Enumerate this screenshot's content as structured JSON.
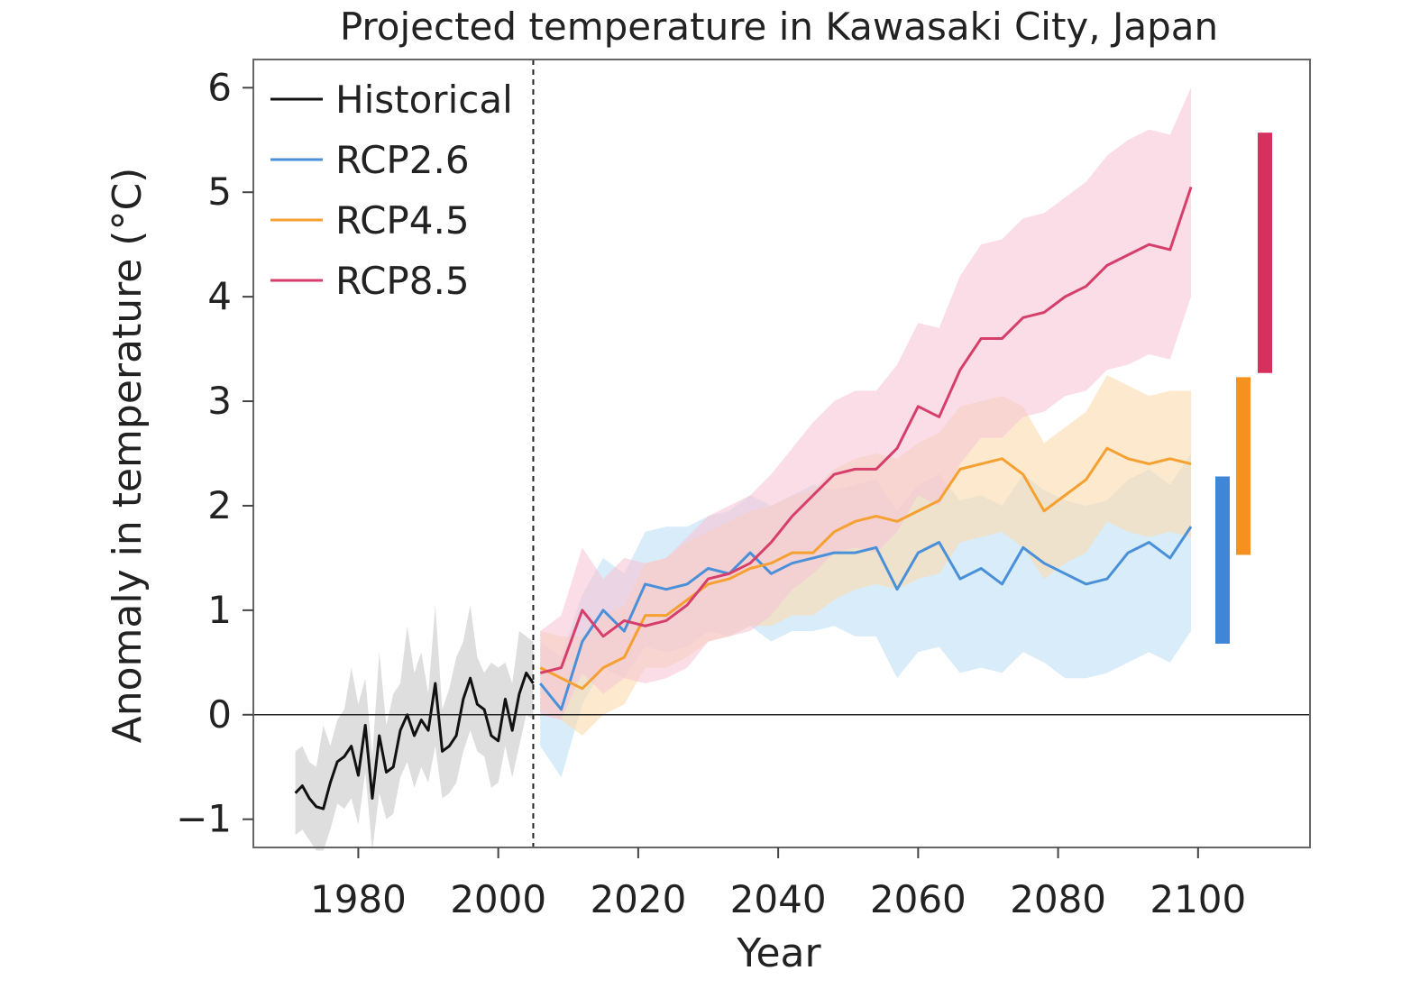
{
  "chart_data": {
    "type": "line",
    "title": "Projected temperature in Kawasaki City, Japan",
    "xlabel": "Year",
    "ylabel": "Anomaly in temperature (°C)",
    "xlim": [
      1965,
      2116
    ],
    "ylim": [
      -1.27,
      6.27
    ],
    "xticks": [
      1980,
      2000,
      2020,
      2040,
      2060,
      2080,
      2100
    ],
    "yticks": [
      -1,
      0,
      1,
      2,
      3,
      4,
      5,
      6
    ],
    "ytick_labels": [
      "−1",
      "0",
      "1",
      "2",
      "3",
      "4",
      "5",
      "6"
    ],
    "reference_line_y": 0,
    "divider_year": 2005,
    "grid": false,
    "legend_position": "top-left",
    "series": [
      {
        "name": "Historical",
        "color": "#111111",
        "band_color": "#c8c8c8",
        "x": [
          1971,
          1972,
          1973,
          1974,
          1975,
          1976,
          1977,
          1978,
          1979,
          1980,
          1981,
          1982,
          1983,
          1984,
          1985,
          1986,
          1987,
          1988,
          1989,
          1990,
          1991,
          1992,
          1993,
          1994,
          1995,
          1996,
          1997,
          1998,
          1999,
          2000,
          2001,
          2002,
          2003,
          2004,
          2005
        ],
        "values": [
          -0.75,
          -0.68,
          -0.8,
          -0.88,
          -0.9,
          -0.65,
          -0.45,
          -0.4,
          -0.3,
          -0.58,
          -0.1,
          -0.8,
          -0.2,
          -0.55,
          -0.5,
          -0.15,
          0.0,
          -0.2,
          -0.05,
          -0.15,
          0.3,
          -0.35,
          -0.3,
          -0.2,
          0.15,
          0.35,
          0.1,
          0.05,
          -0.2,
          -0.25,
          0.15,
          -0.15,
          0.2,
          0.4,
          0.3
        ],
        "upper": [
          -0.35,
          -0.3,
          -0.45,
          -0.5,
          -0.1,
          -0.3,
          -0.05,
          0.05,
          0.45,
          0.1,
          0.35,
          -0.4,
          0.6,
          -0.1,
          0.2,
          0.3,
          0.85,
          0.4,
          0.6,
          0.2,
          1.05,
          0.05,
          0.25,
          0.55,
          0.7,
          1.05,
          0.55,
          0.4,
          0.5,
          0.45,
          0.5,
          0.3,
          0.8,
          0.75,
          0.7
        ],
        "lower": [
          -1.15,
          -1.1,
          -1.2,
          -1.3,
          -1.3,
          -1.1,
          -0.85,
          -0.9,
          -0.8,
          -1.05,
          -0.55,
          -1.3,
          -0.75,
          -1.0,
          -0.95,
          -0.6,
          -0.45,
          -0.7,
          -0.5,
          -0.65,
          -0.3,
          -0.8,
          -0.75,
          -0.65,
          -0.35,
          -0.15,
          -0.35,
          -0.4,
          -0.7,
          -0.65,
          -0.3,
          -0.6,
          -0.3,
          0.0,
          -0.05
        ]
      },
      {
        "name": "RCP2.6",
        "color": "#4a90d9",
        "band_color": "#bfe0f5",
        "x": [
          2006,
          2009,
          2012,
          2015,
          2018,
          2021,
          2024,
          2027,
          2030,
          2033,
          2036,
          2039,
          2042,
          2045,
          2048,
          2051,
          2054,
          2057,
          2060,
          2063,
          2066,
          2069,
          2072,
          2075,
          2078,
          2081,
          2084,
          2087,
          2090,
          2093,
          2096,
          2099
        ],
        "values": [
          0.3,
          0.05,
          0.7,
          1.0,
          0.8,
          1.25,
          1.2,
          1.25,
          1.4,
          1.35,
          1.55,
          1.35,
          1.45,
          1.5,
          1.55,
          1.55,
          1.6,
          1.2,
          1.55,
          1.65,
          1.3,
          1.4,
          1.25,
          1.6,
          1.45,
          1.35,
          1.25,
          1.3,
          1.55,
          1.65,
          1.5,
          1.8
        ],
        "upper": [
          0.7,
          0.55,
          1.15,
          1.5,
          1.35,
          1.75,
          1.8,
          1.8,
          1.9,
          1.95,
          2.1,
          2.0,
          2.1,
          2.2,
          2.15,
          2.2,
          2.25,
          1.95,
          2.2,
          2.3,
          2.05,
          2.1,
          2.0,
          2.3,
          2.15,
          2.05,
          2.0,
          2.05,
          2.25,
          2.35,
          2.2,
          2.5
        ],
        "lower": [
          -0.3,
          -0.6,
          0.1,
          0.45,
          0.35,
          0.65,
          0.6,
          0.65,
          0.8,
          0.75,
          0.85,
          0.7,
          0.8,
          0.8,
          0.85,
          0.75,
          0.75,
          0.35,
          0.6,
          0.65,
          0.4,
          0.45,
          0.4,
          0.6,
          0.5,
          0.35,
          0.35,
          0.4,
          0.5,
          0.6,
          0.5,
          0.8
        ]
      },
      {
        "name": "RCP4.5",
        "color": "#f5a030",
        "band_color": "#fbdcae",
        "x": [
          2006,
          2009,
          2012,
          2015,
          2018,
          2021,
          2024,
          2027,
          2030,
          2033,
          2036,
          2039,
          2042,
          2045,
          2048,
          2051,
          2054,
          2057,
          2060,
          2063,
          2066,
          2069,
          2072,
          2075,
          2078,
          2081,
          2084,
          2087,
          2090,
          2093,
          2096,
          2099
        ],
        "values": [
          0.45,
          0.35,
          0.25,
          0.45,
          0.55,
          0.95,
          0.95,
          1.1,
          1.25,
          1.3,
          1.4,
          1.45,
          1.55,
          1.55,
          1.75,
          1.85,
          1.9,
          1.85,
          1.95,
          2.05,
          2.35,
          2.4,
          2.45,
          2.3,
          1.95,
          2.1,
          2.25,
          2.55,
          2.45,
          2.4,
          2.45,
          2.4
        ],
        "upper": [
          0.8,
          0.75,
          0.75,
          0.95,
          1.05,
          1.45,
          1.5,
          1.65,
          1.75,
          1.85,
          1.95,
          2.0,
          2.1,
          2.15,
          2.35,
          2.45,
          2.5,
          2.45,
          2.6,
          2.7,
          2.95,
          3.0,
          3.05,
          2.95,
          2.6,
          2.75,
          2.9,
          3.25,
          3.15,
          3.05,
          3.1,
          3.1
        ],
        "lower": [
          0.05,
          -0.05,
          -0.2,
          0.0,
          0.1,
          0.45,
          0.45,
          0.55,
          0.7,
          0.75,
          0.85,
          0.85,
          0.95,
          0.95,
          1.1,
          1.2,
          1.25,
          1.2,
          1.3,
          1.35,
          1.65,
          1.7,
          1.75,
          1.6,
          1.3,
          1.45,
          1.55,
          1.85,
          1.75,
          1.7,
          1.75,
          1.7
        ]
      },
      {
        "name": "RCP8.5",
        "color": "#d63f6b",
        "band_color": "#f7c7d6",
        "x": [
          2006,
          2009,
          2012,
          2015,
          2018,
          2021,
          2024,
          2027,
          2030,
          2033,
          2036,
          2039,
          2042,
          2045,
          2048,
          2051,
          2054,
          2057,
          2060,
          2063,
          2066,
          2069,
          2072,
          2075,
          2078,
          2081,
          2084,
          2087,
          2090,
          2093,
          2096,
          2099
        ],
        "values": [
          0.4,
          0.45,
          1.0,
          0.75,
          0.9,
          0.85,
          0.9,
          1.05,
          1.3,
          1.35,
          1.45,
          1.65,
          1.9,
          2.1,
          2.3,
          2.35,
          2.35,
          2.55,
          2.95,
          2.85,
          3.3,
          3.6,
          3.6,
          3.8,
          3.85,
          4.0,
          4.1,
          4.3,
          4.4,
          4.5,
          4.45,
          5.05
        ],
        "upper": [
          0.8,
          0.95,
          1.6,
          1.3,
          1.5,
          1.45,
          1.5,
          1.7,
          1.9,
          2.0,
          2.1,
          2.3,
          2.55,
          2.8,
          3.0,
          3.1,
          3.1,
          3.35,
          3.75,
          3.7,
          4.2,
          4.5,
          4.55,
          4.75,
          4.8,
          4.95,
          5.1,
          5.35,
          5.5,
          5.6,
          5.55,
          6.0
        ],
        "lower": [
          0.0,
          -0.05,
          0.4,
          0.2,
          0.35,
          0.3,
          0.35,
          0.45,
          0.7,
          0.75,
          0.8,
          0.95,
          1.2,
          1.35,
          1.55,
          1.6,
          1.55,
          1.75,
          2.1,
          2.0,
          2.4,
          2.65,
          2.65,
          2.85,
          2.9,
          3.05,
          3.1,
          3.3,
          3.35,
          3.45,
          3.4,
          4.0
        ]
      }
    ],
    "range_bars": [
      {
        "name": "RCP2.6",
        "color": "#3f86d6",
        "low": 0.68,
        "high": 2.28
      },
      {
        "name": "RCP4.5",
        "color": "#f5921f",
        "low": 1.53,
        "high": 3.23
      },
      {
        "name": "RCP8.5",
        "color": "#d6305e",
        "low": 3.27,
        "high": 5.57
      }
    ]
  }
}
